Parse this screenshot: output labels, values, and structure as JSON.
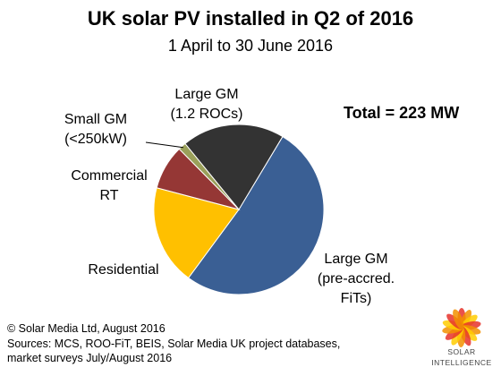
{
  "chart_data": {
    "type": "pie",
    "title": "UK solar PV installed in Q2 of 2016",
    "subtitle": "1 April to 30 June 2016",
    "annotation": "Total = 223 MW",
    "slices": [
      {
        "label_lines": [
          "Large GM",
          "(pre-accred.",
          "FiTs)"
        ],
        "percent": 51.5,
        "color": "#3a5f94"
      },
      {
        "label_lines": [
          "Residential"
        ],
        "percent": 19.0,
        "color": "#ffc000"
      },
      {
        "label_lines": [
          "Commercial",
          "RT"
        ],
        "percent": 8.5,
        "color": "#953735"
      },
      {
        "label_lines": [
          "Small GM",
          "(<250kW)"
        ],
        "percent": 1.5,
        "color": "#9aa05a"
      },
      {
        "label_lines": [
          "Large GM",
          "(1.2 ROCs)"
        ],
        "percent": 19.5,
        "color": "#333333"
      }
    ],
    "start_direction": "top-right, clockwise",
    "legend": "none"
  },
  "footer": {
    "copyright": "© Solar Media Ltd, August 2016",
    "sources_1": "Sources: MCS, ROO-FiT, BEIS, Solar Media UK project databases,",
    "sources_2": "market surveys July/August 2016"
  },
  "logo": {
    "line1": "SOLAR",
    "line2": "INTELLIGENCE",
    "colors": [
      "#e6332a",
      "#f29100",
      "#ffcc00"
    ]
  }
}
